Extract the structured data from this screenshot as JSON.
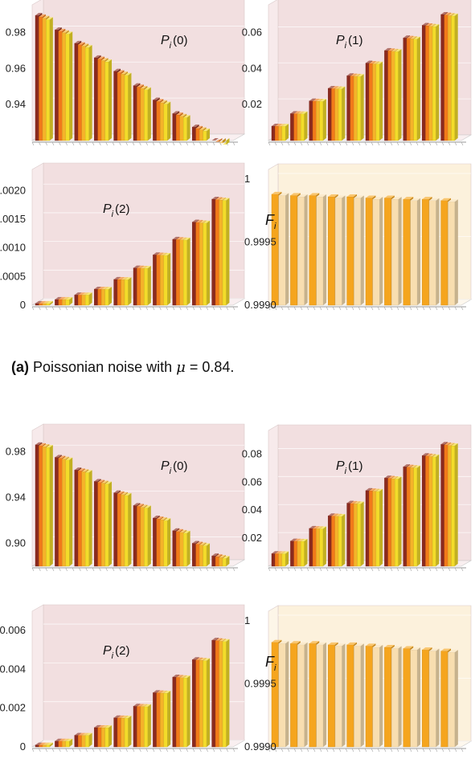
{
  "caption_a": {
    "tag": "(a)",
    "text": "Poissonian noise with",
    "symbol": "μ",
    "relation": "= 0.84."
  },
  "colors": {
    "p_series": [
      "#8b2a1e",
      "#f27a1a",
      "#f5b32a",
      "#f3dc2a"
    ],
    "f_dark": "#f5a51e",
    "f_light": "#f8deb0",
    "p_backdrop": "#f2dfe0",
    "f_backdrop": "#fcf1dc"
  },
  "chart_data": [
    {
      "id": "a-P0",
      "type": "bar",
      "group": "a",
      "label_base": "P",
      "label_sub": "i",
      "label_arg": "(0)",
      "ylim": [
        0.92,
        0.99
      ],
      "yticks": [
        {
          "v": 0.94,
          "t": "0.94"
        },
        {
          "v": 0.96,
          "t": "0.96"
        },
        {
          "v": 0.98,
          "t": "0.98"
        }
      ],
      "series_per_group": 4,
      "values": [
        0.9895,
        0.9815,
        0.974,
        0.966,
        0.9585,
        0.9505,
        0.9425,
        0.935,
        0.9275,
        0.92
      ]
    },
    {
      "id": "a-P1",
      "type": "bar",
      "group": "a",
      "label_base": "P",
      "label_sub": "i",
      "label_arg": "(1)",
      "ylim": [
        0.0,
        0.07
      ],
      "yticks": [
        {
          "v": 0.02,
          "t": "0.02"
        },
        {
          "v": 0.04,
          "t": "0.04"
        },
        {
          "v": 0.06,
          "t": "0.06"
        }
      ],
      "series_per_group": 4,
      "values": [
        0.008,
        0.015,
        0.022,
        0.029,
        0.036,
        0.043,
        0.05,
        0.057,
        0.064,
        0.07
      ]
    },
    {
      "id": "a-P2",
      "type": "bar",
      "group": "a",
      "label_base": "P",
      "label_sub": "i",
      "label_arg": "(2)",
      "ylim": [
        0.0,
        0.0022
      ],
      "yticks": [
        {
          "v": 0.0,
          "t": "0"
        },
        {
          "v": 0.0005,
          "t": "0.0005"
        },
        {
          "v": 0.001,
          "t": "0.0010"
        },
        {
          "v": 0.0015,
          "t": "0.0015"
        },
        {
          "v": 0.002,
          "t": "0.0020"
        }
      ],
      "series_per_group": 4,
      "values": [
        3e-05,
        0.0001,
        0.00018,
        0.00028,
        0.00045,
        0.00065,
        0.00088,
        0.00115,
        0.00145,
        0.00185
      ]
    },
    {
      "id": "a-F",
      "type": "bar",
      "group": "a",
      "label_base": "F",
      "label_sub": "i",
      "label_arg": "",
      "ylim": [
        0.999,
        1.0
      ],
      "yticks": [
        {
          "v": 0.999,
          "t": "0.9990"
        },
        {
          "v": 0.9995,
          "t": "0.9995"
        },
        {
          "v": 1.0,
          "t": "1"
        }
      ],
      "series_per_group": 2,
      "values": [
        0.99988,
        0.99987,
        0.99987,
        0.99986,
        0.99986,
        0.99985,
        0.99985,
        0.99984,
        0.99984,
        0.99983
      ]
    },
    {
      "id": "b-P0",
      "type": "bar",
      "group": "b",
      "label_base": "P",
      "label_sub": "i",
      "label_arg": "(0)",
      "ylim": [
        0.88,
        0.99
      ],
      "yticks": [
        {
          "v": 0.9,
          "t": "0.90"
        },
        {
          "v": 0.94,
          "t": "0.94"
        },
        {
          "v": 0.98,
          "t": "0.98"
        }
      ],
      "series_per_group": 4,
      "values": [
        0.986,
        0.975,
        0.964,
        0.954,
        0.944,
        0.933,
        0.922,
        0.911,
        0.9,
        0.889
      ]
    },
    {
      "id": "b-P1",
      "type": "bar",
      "group": "b",
      "label_base": "P",
      "label_sub": "i",
      "label_arg": "(1)",
      "ylim": [
        0.0,
        0.09
      ],
      "yticks": [
        {
          "v": 0.02,
          "t": "0.02"
        },
        {
          "v": 0.04,
          "t": "0.04"
        },
        {
          "v": 0.06,
          "t": "0.06"
        },
        {
          "v": 0.08,
          "t": "0.08"
        }
      ],
      "series_per_group": 4,
      "values": [
        0.009,
        0.018,
        0.027,
        0.036,
        0.045,
        0.054,
        0.063,
        0.071,
        0.079,
        0.087
      ]
    },
    {
      "id": "b-P2",
      "type": "bar",
      "group": "b",
      "label_base": "P",
      "label_sub": "i",
      "label_arg": "(2)",
      "ylim": [
        0.0,
        0.0065
      ],
      "yticks": [
        {
          "v": 0.0,
          "t": "0"
        },
        {
          "v": 0.002,
          "t": "0.002"
        },
        {
          "v": 0.004,
          "t": "0.004"
        },
        {
          "v": 0.006,
          "t": "0.006"
        }
      ],
      "series_per_group": 4,
      "values": [
        0.0001,
        0.0003,
        0.0006,
        0.001,
        0.0015,
        0.0021,
        0.0028,
        0.0036,
        0.0045,
        0.0055
      ]
    },
    {
      "id": "b-F",
      "type": "bar",
      "group": "b",
      "label_base": "F",
      "label_sub": "i",
      "label_arg": "",
      "ylim": [
        0.999,
        1.0
      ],
      "yticks": [
        {
          "v": 0.999,
          "t": "0.9990"
        },
        {
          "v": 0.9995,
          "t": "0.9995"
        },
        {
          "v": 1.0,
          "t": "1"
        }
      ],
      "series_per_group": 2,
      "values": [
        0.99983,
        0.99982,
        0.99982,
        0.99981,
        0.99981,
        0.9998,
        0.99979,
        0.99978,
        0.99977,
        0.99976
      ]
    }
  ]
}
